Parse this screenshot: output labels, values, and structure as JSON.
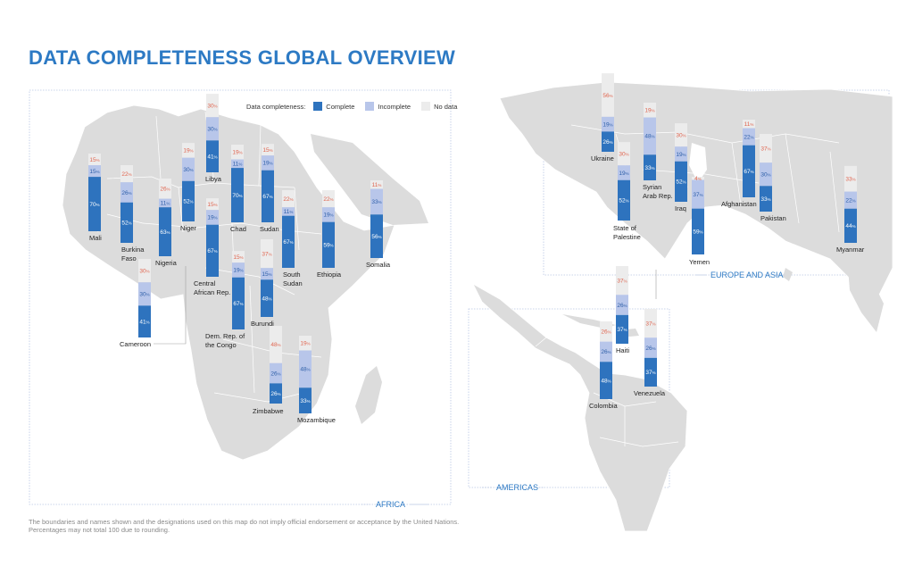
{
  "title": "DATA COMPLETENESS GLOBAL OVERVIEW",
  "legend": {
    "title": "Data completeness:",
    "items": [
      {
        "label": "Complete",
        "color": "#2e73be"
      },
      {
        "label": "Incomplete",
        "color": "#b8c6ea"
      },
      {
        "label": "No data",
        "color": "#ececec"
      }
    ]
  },
  "regions": {
    "africa": "AFRICA",
    "europe_asia": "EUROPE AND ASIA",
    "americas": "AMERICAS"
  },
  "note": "The boundaries and names shown and the designations used on this map do not imply official endorsement or acceptance by the United Nations. Percentages may not total 100 due to rounding.",
  "colors": {
    "complete": "#2e73be",
    "incomplete": "#b8c6ea",
    "nodata": "#ececec",
    "nodata_text": "#e06650",
    "land": "#dcdcdc",
    "title": "#2d7ac4"
  },
  "chart_data": {
    "type": "bar",
    "stacked": true,
    "unit": "%",
    "series_order": [
      "Complete",
      "Incomplete",
      "No data"
    ],
    "countries": [
      {
        "name": "Mali",
        "region": "Africa",
        "complete": 70,
        "incomplete": 15,
        "nodata": 15
      },
      {
        "name": "Burkina Faso",
        "region": "Africa",
        "complete": 52,
        "incomplete": 26,
        "nodata": 22
      },
      {
        "name": "Nigeria",
        "region": "Africa",
        "complete": 63,
        "incomplete": 11,
        "nodata": 26
      },
      {
        "name": "Niger",
        "region": "Africa",
        "complete": 52,
        "incomplete": 30,
        "nodata": 19
      },
      {
        "name": "Libya",
        "region": "Africa",
        "complete": 41,
        "incomplete": 30,
        "nodata": 30
      },
      {
        "name": "Chad",
        "region": "Africa",
        "complete": 70,
        "incomplete": 11,
        "nodata": 19
      },
      {
        "name": "Sudan",
        "region": "Africa",
        "complete": 67,
        "incomplete": 19,
        "nodata": 15
      },
      {
        "name": "South Sudan",
        "region": "Africa",
        "complete": 67,
        "incomplete": 11,
        "nodata": 22
      },
      {
        "name": "Ethiopia",
        "region": "Africa",
        "complete": 59,
        "incomplete": 19,
        "nodata": 22
      },
      {
        "name": "Somalia",
        "region": "Africa",
        "complete": 56,
        "incomplete": 33,
        "nodata": 11
      },
      {
        "name": "Central African Rep.",
        "region": "Africa",
        "complete": 67,
        "incomplete": 19,
        "nodata": 15
      },
      {
        "name": "Dem. Rep. of the Congo",
        "region": "Africa",
        "complete": 67,
        "incomplete": 19,
        "nodata": 15
      },
      {
        "name": "Burundi",
        "region": "Africa",
        "complete": 48,
        "incomplete": 15,
        "nodata": 37
      },
      {
        "name": "Cameroon",
        "region": "Africa",
        "complete": 41,
        "incomplete": 30,
        "nodata": 30
      },
      {
        "name": "Zimbabwe",
        "region": "Africa",
        "complete": 26,
        "incomplete": 26,
        "nodata": 48
      },
      {
        "name": "Mozambique",
        "region": "Africa",
        "complete": 33,
        "incomplete": 48,
        "nodata": 19
      },
      {
        "name": "Ukraine",
        "region": "Europe and Asia",
        "complete": 26,
        "incomplete": 19,
        "nodata": 56
      },
      {
        "name": "State of Palestine",
        "region": "Europe and Asia",
        "complete": 52,
        "incomplete": 19,
        "nodata": 30
      },
      {
        "name": "Syrian Arab Rep.",
        "region": "Europe and Asia",
        "complete": 33,
        "incomplete": 48,
        "nodata": 19
      },
      {
        "name": "Iraq",
        "region": "Europe and Asia",
        "complete": 52,
        "incomplete": 19,
        "nodata": 30
      },
      {
        "name": "Yemen",
        "region": "Europe and Asia",
        "complete": 59,
        "incomplete": 37,
        "nodata": 4
      },
      {
        "name": "Afghanistan",
        "region": "Europe and Asia",
        "complete": 67,
        "incomplete": 22,
        "nodata": 11
      },
      {
        "name": "Pakistan",
        "region": "Europe and Asia",
        "complete": 33,
        "incomplete": 30,
        "nodata": 37
      },
      {
        "name": "Myanmar",
        "region": "Europe and Asia",
        "complete": 44,
        "incomplete": 22,
        "nodata": 33
      },
      {
        "name": "Haiti",
        "region": "Americas",
        "complete": 37,
        "incomplete": 26,
        "nodata": 37
      },
      {
        "name": "Colombia",
        "region": "Americas",
        "complete": 48,
        "incomplete": 26,
        "nodata": 26
      },
      {
        "name": "Venezuela",
        "region": "Americas",
        "complete": 37,
        "incomplete": 26,
        "nodata": 37
      }
    ]
  }
}
